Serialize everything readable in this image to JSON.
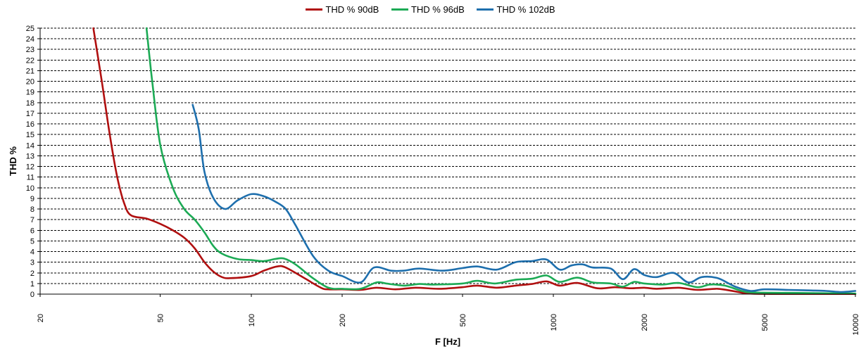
{
  "chart_data": {
    "type": "line",
    "xlabel": "F [Hz]",
    "ylabel": "THD %",
    "xscale": "log",
    "xlim": [
      20,
      10000
    ],
    "ylim": [
      0,
      25
    ],
    "x_ticks": [
      "20",
      "50",
      "100",
      "200",
      "500",
      "1000",
      "2000",
      "5000",
      "10000"
    ],
    "y_ticks": [
      "0",
      "1",
      "2",
      "3",
      "4",
      "5",
      "6",
      "7",
      "8",
      "9",
      "10",
      "11",
      "12",
      "13",
      "14",
      "15",
      "16",
      "17",
      "18",
      "19",
      "20",
      "21",
      "22",
      "23",
      "24",
      "25"
    ],
    "grid": "horizontal dashed",
    "legend_position": "top",
    "series": [
      {
        "name": "THD % 90dB",
        "color": "#b01010",
        "points": [
          [
            30,
            25
          ],
          [
            32,
            20
          ],
          [
            34,
            15
          ],
          [
            36,
            11
          ],
          [
            38,
            8.5
          ],
          [
            40,
            7.4
          ],
          [
            45,
            7.1
          ],
          [
            50,
            6.6
          ],
          [
            55,
            6.0
          ],
          [
            60,
            5.3
          ],
          [
            65,
            4.3
          ],
          [
            70,
            3.0
          ],
          [
            75,
            2.1
          ],
          [
            80,
            1.6
          ],
          [
            85,
            1.5
          ],
          [
            100,
            1.7
          ],
          [
            110,
            2.2
          ],
          [
            122,
            2.6
          ],
          [
            130,
            2.5
          ],
          [
            150,
            1.5
          ],
          [
            170,
            0.6
          ],
          [
            180,
            0.45
          ],
          [
            200,
            0.45
          ],
          [
            230,
            0.4
          ],
          [
            260,
            0.6
          ],
          [
            300,
            0.45
          ],
          [
            350,
            0.6
          ],
          [
            420,
            0.5
          ],
          [
            500,
            0.65
          ],
          [
            560,
            0.8
          ],
          [
            650,
            0.6
          ],
          [
            750,
            0.8
          ],
          [
            850,
            0.95
          ],
          [
            950,
            1.2
          ],
          [
            1050,
            0.8
          ],
          [
            1200,
            1.05
          ],
          [
            1400,
            0.55
          ],
          [
            1600,
            0.65
          ],
          [
            1800,
            0.55
          ],
          [
            2000,
            0.6
          ],
          [
            2200,
            0.5
          ],
          [
            2600,
            0.6
          ],
          [
            3000,
            0.4
          ],
          [
            3500,
            0.5
          ],
          [
            4000,
            0.25
          ],
          [
            4500,
            0.05
          ],
          [
            6000,
            0.02
          ],
          [
            10000,
            0.02
          ]
        ]
      },
      {
        "name": "THD % 96dB",
        "color": "#1caa55",
        "points": [
          [
            45,
            25
          ],
          [
            47,
            20
          ],
          [
            50,
            14
          ],
          [
            55,
            10
          ],
          [
            60,
            8.0
          ],
          [
            65,
            7.0
          ],
          [
            70,
            5.8
          ],
          [
            75,
            4.5
          ],
          [
            80,
            3.8
          ],
          [
            90,
            3.3
          ],
          [
            100,
            3.2
          ],
          [
            110,
            3.1
          ],
          [
            120,
            3.3
          ],
          [
            128,
            3.35
          ],
          [
            140,
            2.8
          ],
          [
            160,
            1.5
          ],
          [
            180,
            0.6
          ],
          [
            200,
            0.5
          ],
          [
            230,
            0.5
          ],
          [
            260,
            1.1
          ],
          [
            280,
            1.0
          ],
          [
            320,
            0.8
          ],
          [
            360,
            0.95
          ],
          [
            400,
            0.9
          ],
          [
            500,
            1.0
          ],
          [
            560,
            1.25
          ],
          [
            640,
            1.0
          ],
          [
            750,
            1.35
          ],
          [
            850,
            1.45
          ],
          [
            950,
            1.75
          ],
          [
            1050,
            1.15
          ],
          [
            1200,
            1.55
          ],
          [
            1350,
            1.1
          ],
          [
            1550,
            1.0
          ],
          [
            1700,
            0.7
          ],
          [
            1850,
            1.15
          ],
          [
            2000,
            1.0
          ],
          [
            2300,
            0.9
          ],
          [
            2600,
            1.05
          ],
          [
            3000,
            0.65
          ],
          [
            3300,
            0.9
          ],
          [
            3700,
            0.8
          ],
          [
            4200,
            0.3
          ],
          [
            4600,
            0.15
          ],
          [
            6000,
            0.12
          ],
          [
            10000,
            0.05
          ]
        ]
      },
      {
        "name": "THD % 102dB",
        "color": "#1e6fad",
        "points": [
          [
            64,
            17.8
          ],
          [
            67,
            15.5
          ],
          [
            70,
            11.5
          ],
          [
            75,
            9.0
          ],
          [
            82,
            8.0
          ],
          [
            90,
            8.8
          ],
          [
            100,
            9.4
          ],
          [
            110,
            9.2
          ],
          [
            120,
            8.7
          ],
          [
            130,
            8.0
          ],
          [
            140,
            6.5
          ],
          [
            160,
            3.6
          ],
          [
            180,
            2.2
          ],
          [
            200,
            1.7
          ],
          [
            230,
            1.1
          ],
          [
            255,
            2.5
          ],
          [
            290,
            2.2
          ],
          [
            320,
            2.2
          ],
          [
            360,
            2.4
          ],
          [
            430,
            2.2
          ],
          [
            500,
            2.45
          ],
          [
            560,
            2.6
          ],
          [
            650,
            2.3
          ],
          [
            750,
            3.0
          ],
          [
            850,
            3.1
          ],
          [
            950,
            3.25
          ],
          [
            1050,
            2.3
          ],
          [
            1150,
            2.7
          ],
          [
            1250,
            2.8
          ],
          [
            1350,
            2.5
          ],
          [
            1550,
            2.4
          ],
          [
            1700,
            1.4
          ],
          [
            1850,
            2.35
          ],
          [
            2000,
            1.8
          ],
          [
            2200,
            1.6
          ],
          [
            2500,
            2.0
          ],
          [
            2800,
            1.1
          ],
          [
            3100,
            1.6
          ],
          [
            3500,
            1.5
          ],
          [
            4000,
            0.7
          ],
          [
            4500,
            0.3
          ],
          [
            5000,
            0.45
          ],
          [
            6000,
            0.4
          ],
          [
            7000,
            0.35
          ],
          [
            8000,
            0.3
          ],
          [
            9000,
            0.2
          ],
          [
            10000,
            0.3
          ]
        ]
      }
    ]
  }
}
